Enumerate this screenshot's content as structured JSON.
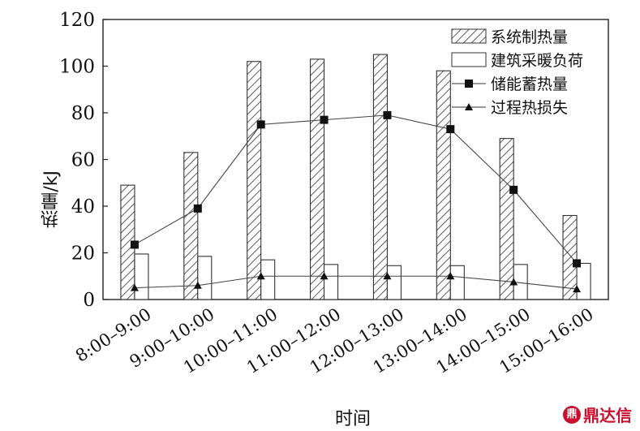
{
  "chart_data": {
    "type": "bar",
    "xlabel": "时间",
    "ylabel": "热量/kJ",
    "ylim": [
      0,
      120
    ],
    "yticks": [
      0,
      20,
      40,
      60,
      80,
      100,
      120
    ],
    "categories": [
      "8:00–9:00",
      "9:00–10:00",
      "10:00–11:00",
      "11:00–12:00",
      "12:00–13:00",
      "13:00–14:00",
      "14:00–15:00",
      "15:00–16:00"
    ],
    "grid": false,
    "legend_position": "top-right",
    "series": [
      {
        "name": "系统制热量",
        "kind": "bar",
        "style": "hatched",
        "values": [
          49,
          63,
          102,
          103,
          105,
          98,
          69,
          36
        ]
      },
      {
        "name": "建筑采暖负荷",
        "kind": "bar",
        "style": "hollow",
        "values": [
          19.5,
          18.5,
          17,
          15,
          14.5,
          14.5,
          15,
          15.5
        ]
      },
      {
        "name": "储能蓄热量",
        "kind": "line",
        "marker": "square",
        "values": [
          23.5,
          39,
          75,
          77,
          79,
          73,
          47,
          15.5
        ]
      },
      {
        "name": "过程热损失",
        "kind": "line",
        "marker": "triangle",
        "values": [
          5,
          6,
          10,
          10,
          10,
          10,
          7.5,
          4.5
        ]
      }
    ]
  },
  "watermark": {
    "icon": "鼎",
    "text": "鼎达信"
  }
}
